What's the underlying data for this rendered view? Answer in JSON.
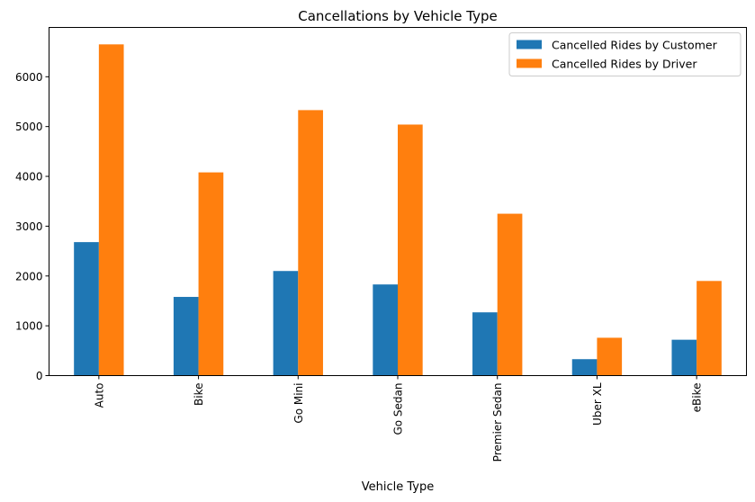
{
  "chart_data": {
    "type": "bar",
    "title": "Cancellations by Vehicle Type",
    "xlabel": "Vehicle Type",
    "ylabel": "",
    "categories": [
      "Auto",
      "Bike",
      "Go Mini",
      "Go Sedan",
      "Premier Sedan",
      "Uber XL",
      "eBike"
    ],
    "series": [
      {
        "name": "Cancelled Rides by Customer",
        "color": "#1f77b4",
        "values": [
          2680,
          1580,
          2100,
          1830,
          1270,
          330,
          720
        ]
      },
      {
        "name": "Cancelled Rides by Driver",
        "color": "#ff7f0e",
        "values": [
          6650,
          4080,
          5330,
          5040,
          3250,
          760,
          1900
        ]
      }
    ],
    "ylim": [
      0,
      6990
    ],
    "yticks": [
      0,
      1000,
      2000,
      3000,
      4000,
      5000,
      6000
    ],
    "grid": false,
    "legend_position": "top-right"
  }
}
